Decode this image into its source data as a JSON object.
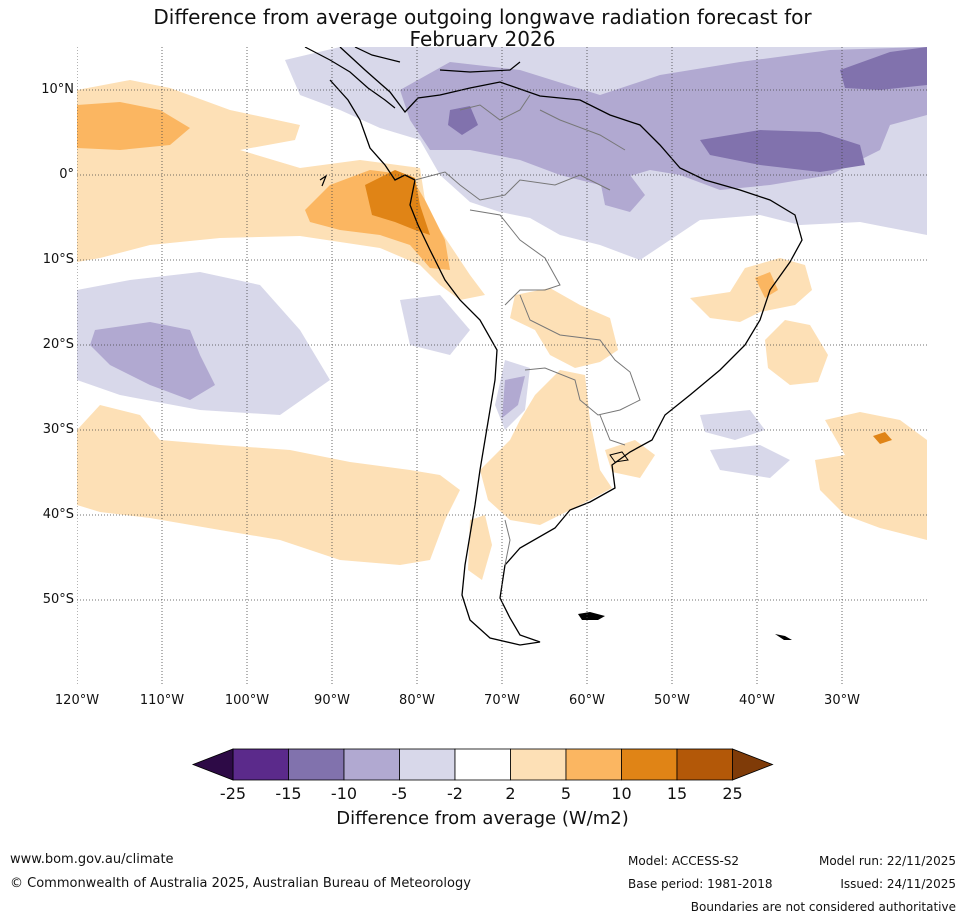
{
  "title": {
    "line1": "Difference from average outgoing longwave radiation forecast for",
    "line2": "February 2026"
  },
  "latitude_labels": [
    "10°N",
    "0°",
    "10°S",
    "20°S",
    "30°S",
    "40°S",
    "50°S"
  ],
  "longitude_labels": [
    "120°W",
    "110°W",
    "100°W",
    "90°W",
    "80°W",
    "70°W",
    "60°W",
    "50°W",
    "40°W",
    "30°W"
  ],
  "legend": {
    "title": "Difference from average (W/m2)",
    "ticks": [
      "-25",
      "-15",
      "-10",
      "-5",
      "-2",
      "2",
      "5",
      "10",
      "15",
      "25"
    ],
    "colors": {
      "below_-25": "#2d0a46",
      "-25_-15": "#5b2a8b",
      "-15_-10": "#8172ad",
      "-10_-5": "#b1a9d1",
      "-5_-2": "#d8d8ea",
      "-2_2": "#ffffff",
      "2_5": "#fde0b6",
      "5_10": "#fbb661",
      "10_15": "#e08416",
      "15_25": "#b35808",
      "above_25": "#7f3b08"
    }
  },
  "footer": {
    "website": "www.bom.gov.au/climate",
    "copyright": "© Commonwealth of Australia 2025, Australian Bureau of Meteorology",
    "model": "Model: ACCESS-S2",
    "base_period": "Base period: 1981-2018",
    "model_run": "Model run: 22/11/2025",
    "issued": "Issued: 24/11/2025",
    "disclaimer": "Boundaries are not considered authoritative"
  }
}
